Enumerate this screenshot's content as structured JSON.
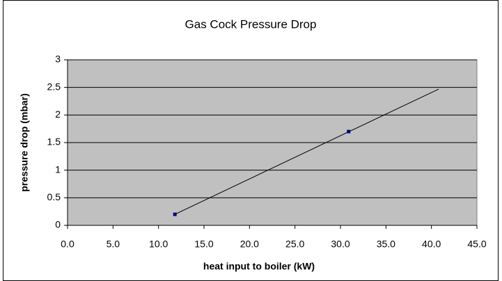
{
  "chart_data": {
    "type": "scatter",
    "title": "Gas Cock Pressure Drop",
    "xlabel": "heat input to boiler (kW)",
    "ylabel": "pressure drop (mbar)",
    "series": [
      {
        "style": "line",
        "color": "#000000",
        "x": [
          11.8,
          40.8
        ],
        "values": [
          0.2,
          2.47
        ]
      },
      {
        "style": "marker",
        "color": "#000080",
        "x": [
          11.8,
          30.9
        ],
        "values": [
          0.2,
          1.7
        ]
      }
    ],
    "xlim": [
      0,
      45
    ],
    "xticks": [
      {
        "value": 0,
        "label": "0.0"
      },
      {
        "value": 5,
        "label": "5.0"
      },
      {
        "value": 10,
        "label": "10.0"
      },
      {
        "value": 15,
        "label": "15.0"
      },
      {
        "value": 20,
        "label": "20.0"
      },
      {
        "value": 25,
        "label": "25.0"
      },
      {
        "value": 30,
        "label": "30.0"
      },
      {
        "value": 35,
        "label": "35.0"
      },
      {
        "value": 40,
        "label": "40.0"
      },
      {
        "value": 45,
        "label": "45.0"
      }
    ],
    "ylim": [
      0,
      3
    ],
    "yticks": [
      0,
      0.5,
      1,
      1.5,
      2,
      2.5,
      3
    ],
    "grid": true,
    "plot_background": "#c0c0c0"
  }
}
